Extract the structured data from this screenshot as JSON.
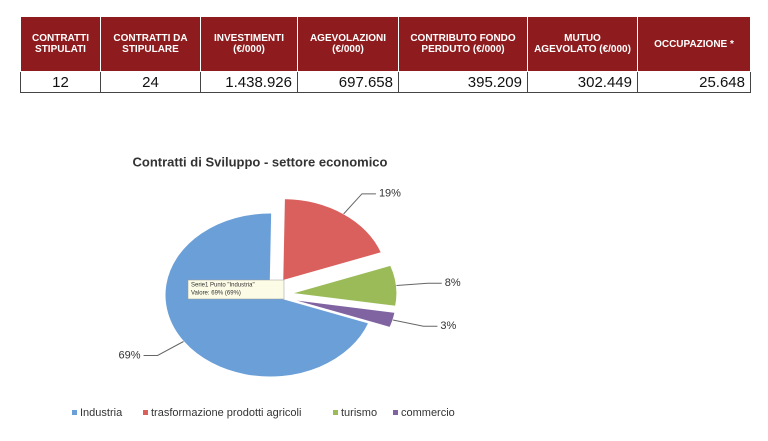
{
  "table": {
    "header": [
      "CONTRATTI STIPULATI",
      "CONTRATTI DA STIPULARE",
      "INVESTIMENTI (€/000)",
      "AGEVOLAZIONI (€/000)",
      "CONTRIBUTO FONDO PERDUTO (€/000)",
      "MUTUO AGEVOLATO (€/000)",
      "OCCUPAZIONE *"
    ],
    "rows": [
      [
        "12",
        "24",
        "1.438.926",
        "697.658",
        "395.209",
        "302.449",
        "25.648"
      ]
    ]
  },
  "chart_data": {
    "type": "pie",
    "title": "Contratti di Sviluppo - settore economico",
    "categories": [
      "Industria",
      "trasformazione prodotti agricoli",
      "turismo",
      "commercio"
    ],
    "values": [
      69,
      19,
      8,
      3
    ],
    "value_labels": [
      "69%",
      "19%",
      "8%",
      "3%"
    ],
    "colors": [
      "#6a9fd8",
      "#d9605c",
      "#9bbb59",
      "#8064a2"
    ],
    "legend": "bottom",
    "tooltip": [
      "Serie1 Punto \"Industria\"",
      "Valore: 69% (69%)"
    ]
  }
}
